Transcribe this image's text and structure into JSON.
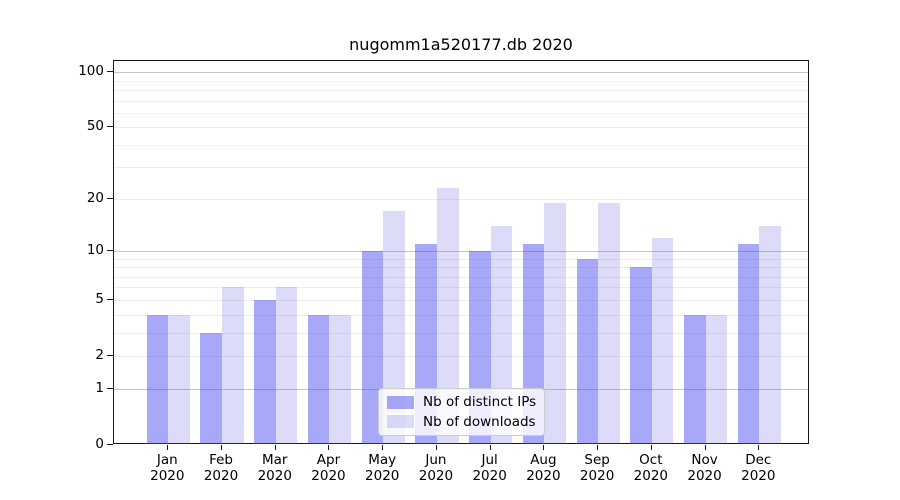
{
  "title": "nugomm1a520177.db 2020",
  "chart_data": {
    "type": "bar",
    "title": "nugomm1a520177.db 2020",
    "categories": [
      "Jan 2020",
      "Feb 2020",
      "Mar 2020",
      "Apr 2020",
      "May 2020",
      "Jun 2020",
      "Jul 2020",
      "Aug 2020",
      "Sep 2020",
      "Oct 2020",
      "Nov 2020",
      "Dec 2020"
    ],
    "series": [
      {
        "name": "Nb of distinct IPs",
        "color": "#a8a8f8",
        "fill": "rgba(62,62,239,0.45)",
        "values": [
          4,
          3,
          5,
          4,
          10,
          11,
          10,
          11,
          9,
          8,
          4,
          11
        ]
      },
      {
        "name": "Nb of downloads",
        "color": "#dcdcf8",
        "fill": "rgba(80,80,220,0.2)",
        "values": [
          4,
          6,
          6,
          4,
          17,
          23,
          14,
          19,
          19,
          12,
          4,
          14
        ]
      }
    ],
    "xlabel": "",
    "ylabel": "",
    "yscale": "log1p",
    "ylim": [
      0,
      114
    ],
    "yticks": [
      0,
      1,
      2,
      5,
      10,
      20,
      50,
      100
    ],
    "major_gridlines": [
      1,
      10,
      100
    ],
    "minor_gridlines": [
      2,
      3,
      4,
      5,
      6,
      7,
      8,
      9,
      20,
      30,
      40,
      50,
      60,
      70,
      80,
      90
    ],
    "grid": true,
    "legend_position": "lower center"
  }
}
